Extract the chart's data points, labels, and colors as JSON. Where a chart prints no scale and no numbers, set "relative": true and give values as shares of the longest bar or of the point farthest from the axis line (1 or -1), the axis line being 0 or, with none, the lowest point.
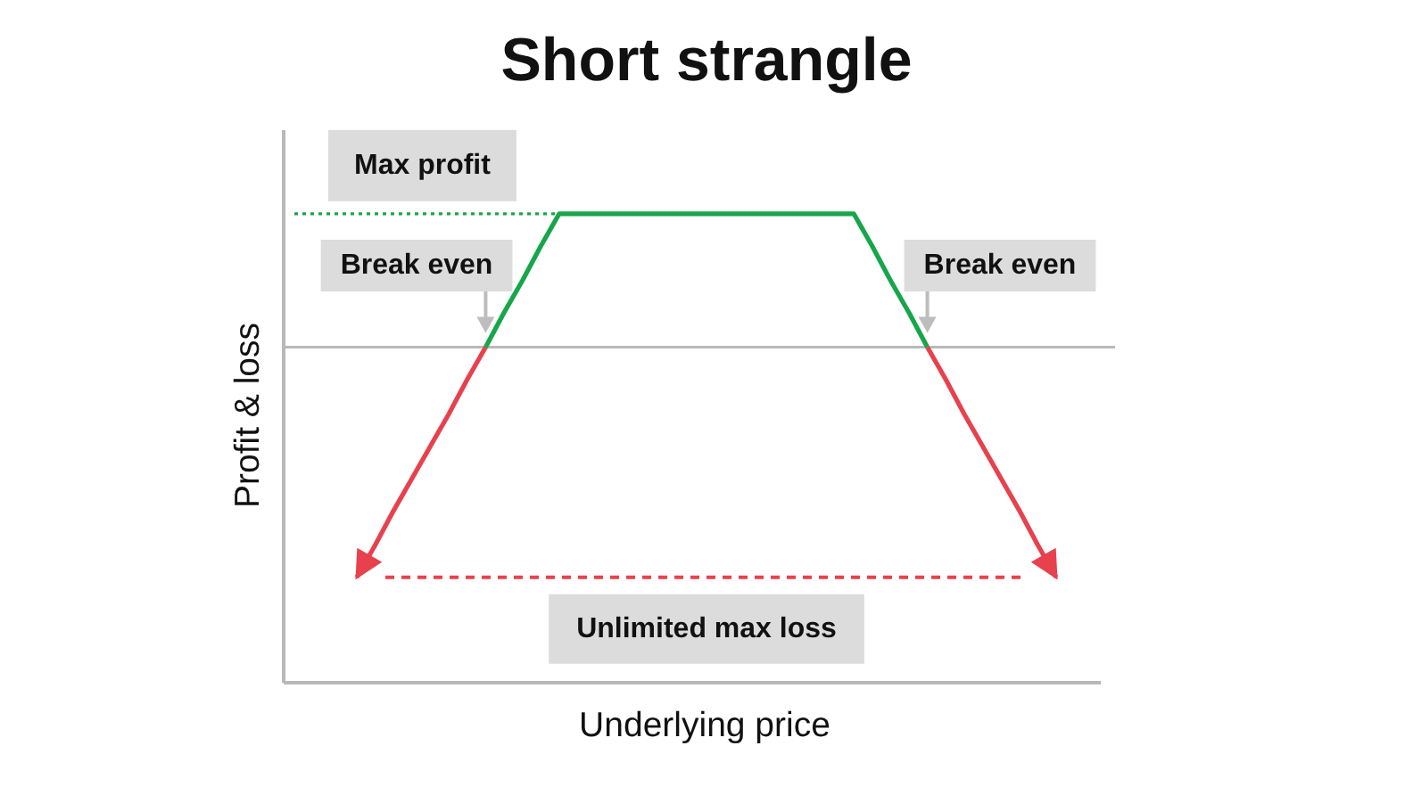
{
  "chart_data": {
    "type": "line",
    "title": "Short strangle",
    "xlabel": "Underlying price",
    "ylabel": "Profit & loss",
    "relative": true,
    "tick_labels": false,
    "categories": [
      null,
      null,
      null,
      null,
      null,
      null,
      null,
      null,
      null,
      null,
      null,
      null,
      null,
      null,
      null,
      null,
      null,
      null,
      null,
      null,
      null,
      null,
      null,
      null,
      null,
      null,
      null,
      null,
      null,
      null,
      null,
      null,
      null,
      null,
      null,
      null,
      null,
      null,
      null
    ],
    "series": [
      {
        "color": "#e8414e",
        "values": [
          -1,
          -0.86,
          -0.71,
          -0.57,
          -0.43,
          -0.29,
          -0.14,
          0,
          null,
          null,
          null,
          null,
          null,
          null,
          null,
          null,
          null,
          null,
          null,
          null,
          null,
          null,
          null,
          null,
          null,
          null,
          null,
          null,
          null,
          null,
          null,
          null,
          null,
          null,
          null,
          null,
          null,
          null,
          null
        ]
      },
      {
        "color": "#17a64b",
        "values": [
          null,
          null,
          null,
          null,
          null,
          null,
          null,
          0,
          0.15,
          0.29,
          0.44,
          0.58,
          0.58,
          0.58,
          0.58,
          0.58,
          0.58,
          0.58,
          0.58,
          0.58,
          0.58,
          0.58,
          0.58,
          0.58,
          0.58,
          0.58,
          0.58,
          0.58,
          0.44,
          0.29,
          0.15,
          0,
          null,
          null,
          null,
          null,
          null,
          null,
          null
        ]
      },
      {
        "color": "#e8414e",
        "values": [
          null,
          null,
          null,
          null,
          null,
          null,
          null,
          null,
          null,
          null,
          null,
          null,
          null,
          null,
          null,
          null,
          null,
          null,
          null,
          null,
          null,
          null,
          null,
          null,
          null,
          null,
          null,
          null,
          null,
          null,
          null,
          0,
          -0.14,
          -0.29,
          -0.43,
          -0.57,
          -0.71,
          -0.86,
          -1
        ]
      }
    ],
    "ref_lines": [
      {
        "axis": "y",
        "value": 0.58,
        "label": "Max profit",
        "color": "#17a64b",
        "line_style": "dotted"
      },
      {
        "axis": "y",
        "value": -1,
        "label": "Unlimited max loss",
        "color": "#e8414e",
        "line_style": "dashed"
      }
    ],
    "annotations": [
      "Break even",
      "Break even"
    ]
  }
}
